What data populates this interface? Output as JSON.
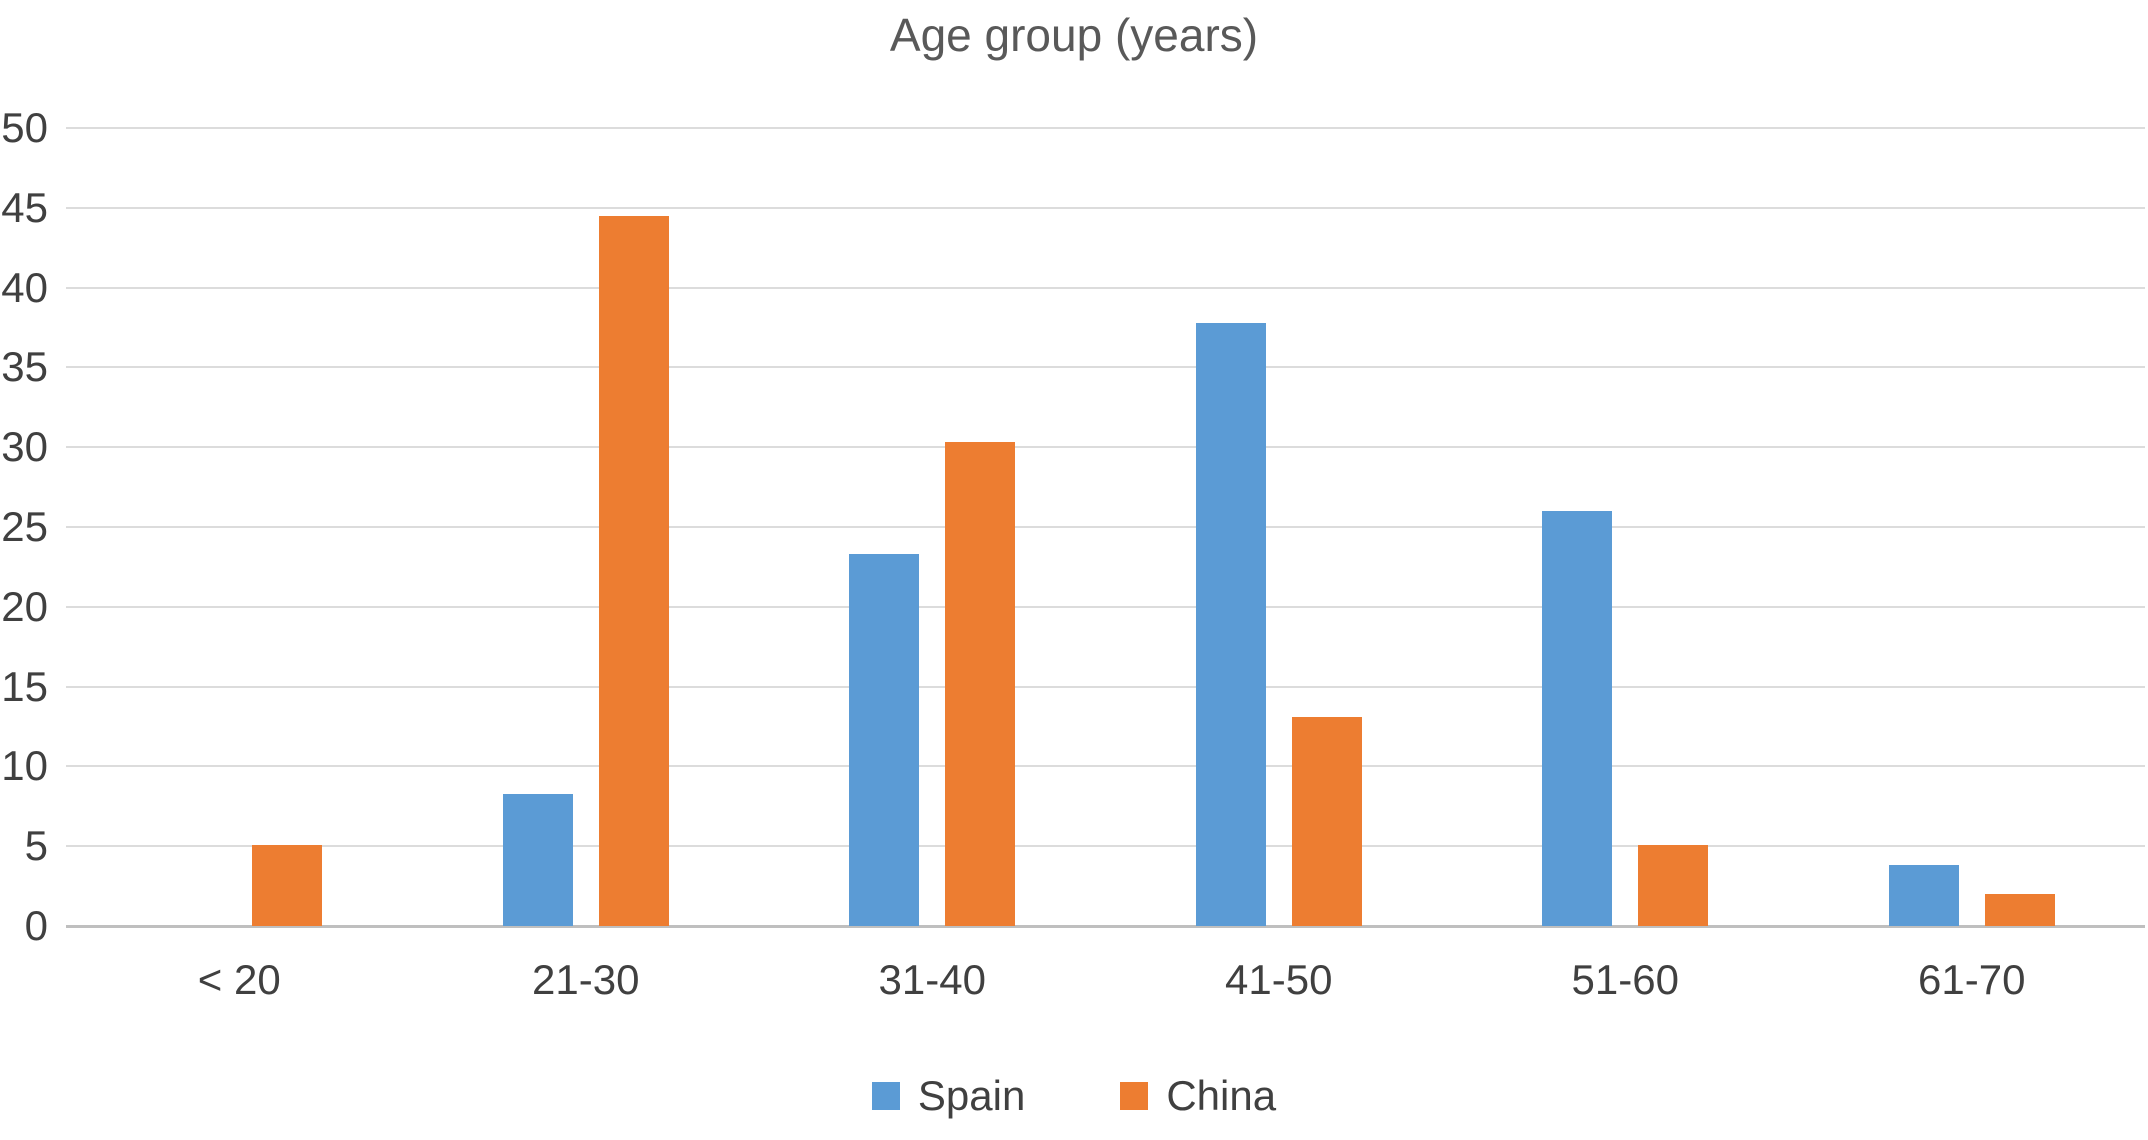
{
  "chart_data": {
    "type": "bar",
    "title": "Age group (years)",
    "categories": [
      "< 20",
      "21-30",
      "31-40",
      "41-50",
      "51-60",
      "61-70"
    ],
    "series": [
      {
        "name": "Spain",
        "color": "#5B9BD5",
        "values": [
          0,
          8.3,
          23.3,
          37.8,
          26,
          3.8
        ]
      },
      {
        "name": "China",
        "color": "#ED7D31",
        "values": [
          5.1,
          44.5,
          30.3,
          13.1,
          5.1,
          2
        ]
      }
    ],
    "ylim": [
      0,
      50
    ],
    "ytick_step": 5,
    "grid": true,
    "legend_position": "bottom",
    "xlabel": "",
    "ylabel": ""
  },
  "colors": {
    "grid": "#DCDCDC",
    "axis": "#BFBFBF",
    "text": "#404040",
    "title": "#595959",
    "background": "#FFFFFF"
  }
}
